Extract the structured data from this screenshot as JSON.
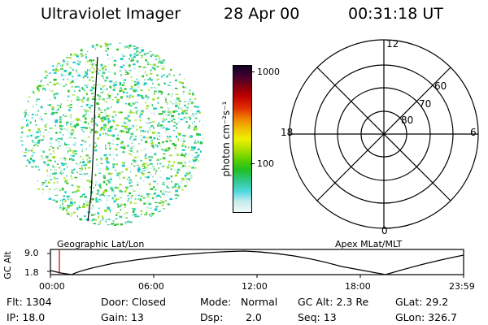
{
  "header": {
    "instrument": "Ultraviolet Imager",
    "date": "28 Apr 00",
    "time": "00:31:18 UT"
  },
  "colorbar": {
    "unit_label": "photon cm⁻²s⁻¹",
    "tick_high": "1000",
    "tick_mid": "100",
    "colors": [
      "#f0f8f8",
      "#c8ecec",
      "#50d8e0",
      "#30c890",
      "#20c020",
      "#60d000",
      "#b0e000",
      "#f0f000",
      "#f0c000",
      "#f08000",
      "#e03000",
      "#c00000",
      "#800010",
      "#400030",
      "#100020"
    ]
  },
  "image_panel": {
    "speckle_colors": [
      "#18c8c8",
      "#40d090",
      "#30c030",
      "#a0e020",
      "#d0f0f0"
    ]
  },
  "polar_panel": {
    "mlt_labels": {
      "top": "12",
      "left": "18",
      "right": "6",
      "bottom": "0"
    },
    "lat_labels": [
      "60",
      "70",
      "80"
    ]
  },
  "panel_labels": {
    "left": "Geographic Lat/Lon",
    "right": "Apex MLat/MLT"
  },
  "altitude_plot": {
    "ylabel": "GC Alt",
    "y_ticks": [
      "9.0",
      "1.8"
    ],
    "x_ticks": [
      "00:00",
      "06:00",
      "12:00",
      "18:00",
      "23:59"
    ],
    "marker_color": "#c00000"
  },
  "status": {
    "col1": [
      "Flt: 1304",
      "IP: 18.0"
    ],
    "col2": [
      "Door: Closed",
      "Gain: 13"
    ],
    "col3a": [
      "Mode:",
      "Dsp:"
    ],
    "col3b": [
      "Normal",
      "2.0"
    ],
    "col4": [
      "GC Alt: 2.3 Re",
      "Seq: 13"
    ],
    "col5": [
      "GLat:  29.2",
      "GLon: 326.7"
    ]
  }
}
